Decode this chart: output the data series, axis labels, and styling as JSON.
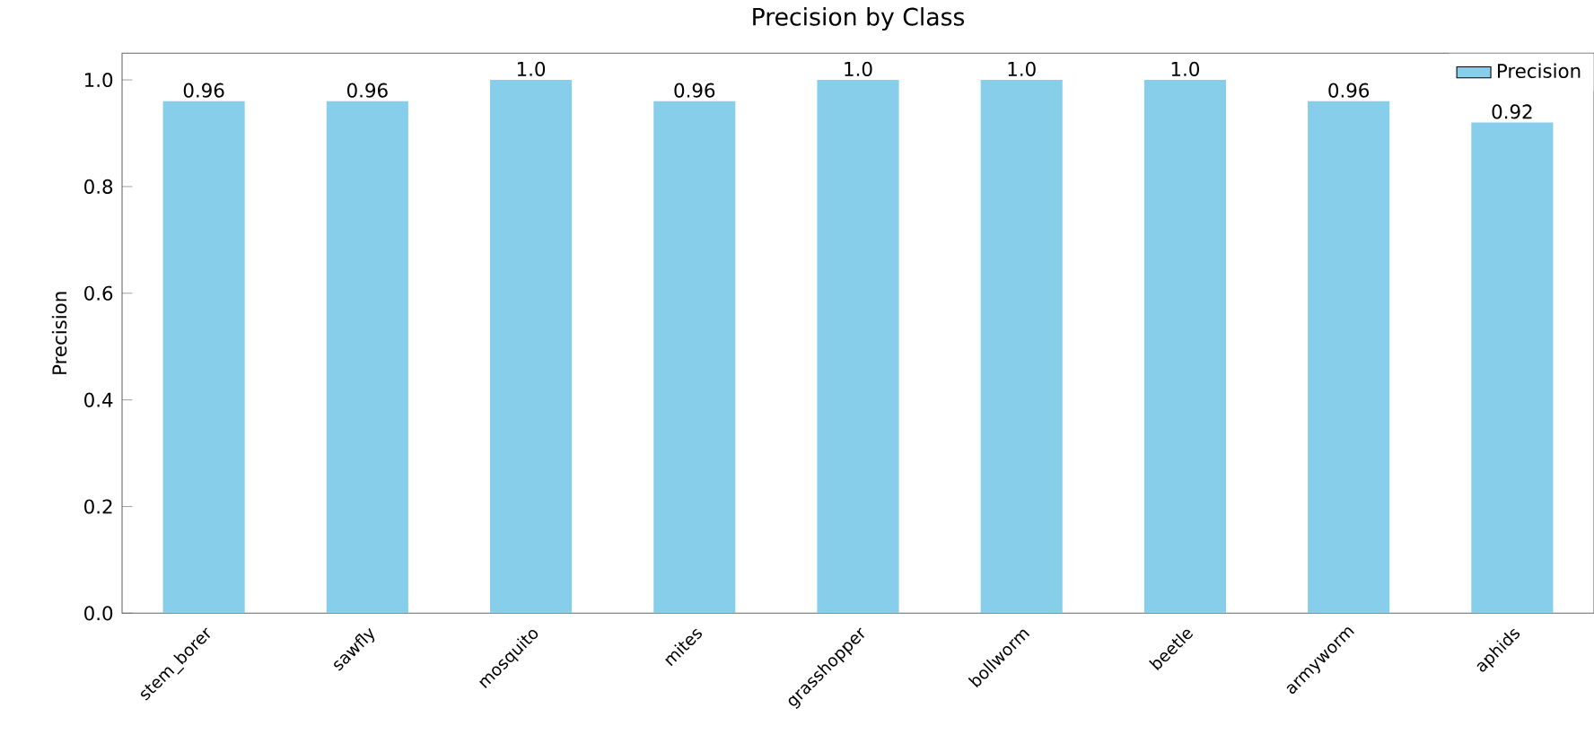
{
  "chart_data": {
    "type": "bar",
    "title": "Precision by Class",
    "ylabel": "Precision",
    "categories": [
      "stem_borer",
      "sawfly",
      "mosquito",
      "mites",
      "grasshopper",
      "bollworm",
      "beetle",
      "armyworm",
      "aphids"
    ],
    "series": [
      {
        "name": "Precision",
        "color": "#87ceeb",
        "values": [
          0.96,
          0.96,
          1.0,
          0.96,
          1.0,
          1.0,
          1.0,
          0.96,
          0.92
        ],
        "value_labels": [
          "0.96",
          "0.96",
          "1.0",
          "0.96",
          "1.0",
          "1.0",
          "1.0",
          "0.96",
          "0.92"
        ]
      }
    ],
    "ylim": [
      0,
      1.05
    ],
    "yticks": [
      {
        "value": 0,
        "label": "0.0"
      },
      {
        "value": 0.2,
        "label": "0.2"
      },
      {
        "value": 0.4,
        "label": "0.4"
      },
      {
        "value": 0.6,
        "label": "0.6"
      },
      {
        "value": 0.8,
        "label": "0.8"
      },
      {
        "value": 1.0,
        "label": "1.0"
      }
    ],
    "legend": "top right",
    "grid": false
  }
}
